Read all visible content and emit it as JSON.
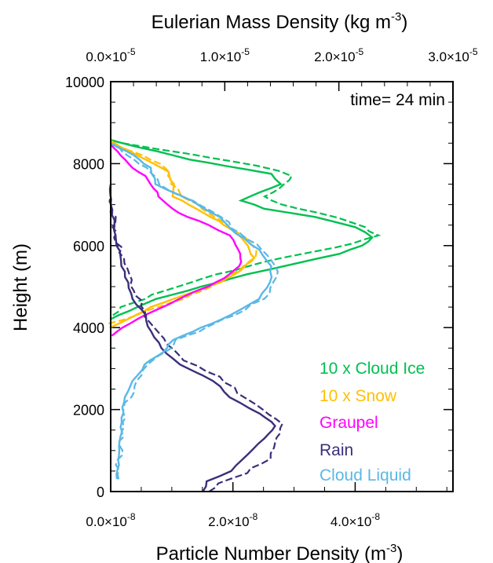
{
  "chart_data": {
    "type": "line",
    "title": "",
    "top_axis": {
      "label": "Eulerian Mass Density (kg m",
      "label_exp": "-3",
      "label_end": ")",
      "range": [
        0,
        3e-05
      ],
      "ticks": [
        {
          "value": 0.0,
          "mant": "0.0",
          "exp": "-5"
        },
        {
          "value": 1e-05,
          "mant": "1.0",
          "exp": "-5"
        },
        {
          "value": 2e-05,
          "mant": "2.0",
          "exp": "-5"
        },
        {
          "value": 3e-05,
          "mant": "3.0",
          "exp": "-5"
        }
      ]
    },
    "bottom_axis": {
      "label": "Particle Number Density (m",
      "label_exp": "-3",
      "label_end": ")",
      "range": [
        0,
        5.6e-08
      ],
      "ticks": [
        {
          "value": 0.0,
          "mant": "0.0",
          "exp": "-8"
        },
        {
          "value": 2e-08,
          "mant": "2.0",
          "exp": "-8"
        },
        {
          "value": 4e-08,
          "mant": "4.0",
          "exp": "-8"
        }
      ]
    },
    "y_axis": {
      "label": "Height (m)",
      "range": [
        0,
        10000
      ],
      "ticks": [
        0,
        2000,
        4000,
        6000,
        8000,
        10000
      ]
    },
    "annotation": "time= 24 min",
    "legend_position": "bottom-right",
    "notes": "Solid lines: Eulerian mass density (top axis). Dashed lines: particle number density (bottom axis).",
    "series": [
      {
        "name": "10 x Cloud Ice",
        "color": "#00c050",
        "mass_top": [
          [
            0,
            4200
          ],
          [
            1.5e-06,
            4400
          ],
          [
            4e-06,
            4700
          ],
          [
            8e-06,
            5000
          ],
          [
            1.2e-05,
            5300
          ],
          [
            1.6e-05,
            5550
          ],
          [
            2e-05,
            5800
          ],
          [
            2.2e-05,
            6000
          ],
          [
            2.3e-05,
            6200
          ],
          [
            2.15e-05,
            6450
          ],
          [
            1.8e-05,
            6700
          ],
          [
            1.35e-05,
            6900
          ],
          [
            1.15e-05,
            7100
          ],
          [
            1.3e-05,
            7300
          ],
          [
            1.5e-05,
            7500
          ],
          [
            1.4e-05,
            7750
          ],
          [
            1e-05,
            7950
          ],
          [
            7e-06,
            8100
          ],
          [
            4e-06,
            8300
          ],
          [
            1e-06,
            8500
          ],
          [
            0,
            8580
          ]
        ],
        "number_bottom": [
          [
            0,
            4300
          ],
          [
            2e-09,
            4500
          ],
          [
            7e-09,
            4800
          ],
          [
            1.3e-08,
            5100
          ],
          [
            2e-08,
            5400
          ],
          [
            2.8e-08,
            5700
          ],
          [
            3.7e-08,
            5950
          ],
          [
            4.4e-08,
            6250
          ],
          [
            4e-08,
            6550
          ],
          [
            3.4e-08,
            6800
          ],
          [
            2.8e-08,
            7000
          ],
          [
            2.5e-08,
            7200
          ],
          [
            2.8e-08,
            7400
          ],
          [
            3e-08,
            7700
          ],
          [
            2.4e-08,
            7950
          ],
          [
            1.6e-08,
            8150
          ],
          [
            8e-09,
            8350
          ],
          [
            2e-09,
            8500
          ],
          [
            0,
            8580
          ]
        ]
      },
      {
        "name": "10 x Snow",
        "color": "#ffc000",
        "mass_top": [
          [
            0,
            4000
          ],
          [
            1.5e-06,
            4200
          ],
          [
            3.5e-06,
            4500
          ],
          [
            6.5e-06,
            4800
          ],
          [
            9.5e-06,
            5100
          ],
          [
            1.15e-05,
            5400
          ],
          [
            1.25e-05,
            5700
          ],
          [
            1.2e-05,
            6000
          ],
          [
            1.1e-05,
            6300
          ],
          [
            9.5e-06,
            6600
          ],
          [
            7.5e-06,
            6900
          ],
          [
            5.5e-06,
            7200
          ],
          [
            5.5e-06,
            7500
          ],
          [
            5e-06,
            7800
          ],
          [
            3e-06,
            8100
          ],
          [
            1e-06,
            8400
          ],
          [
            0,
            8560
          ]
        ],
        "number_bottom": [
          [
            0,
            4100
          ],
          [
            4e-09,
            4300
          ],
          [
            1e-08,
            4600
          ],
          [
            1.5e-08,
            4900
          ],
          [
            1.9e-08,
            5200
          ],
          [
            2.2e-08,
            5500
          ],
          [
            2.4e-08,
            5800
          ],
          [
            2.3e-08,
            6100
          ],
          [
            2e-08,
            6400
          ],
          [
            1.7e-08,
            6700
          ],
          [
            1.4e-08,
            7000
          ],
          [
            1.1e-08,
            7300
          ],
          [
            1e-08,
            7600
          ],
          [
            9e-09,
            7900
          ],
          [
            5e-09,
            8200
          ],
          [
            1e-09,
            8450
          ],
          [
            0,
            8560
          ]
        ]
      },
      {
        "name": "Graupel",
        "color": "#ff00ff",
        "mass_top": [
          [
            0,
            3800
          ],
          [
            1e-06,
            4000
          ],
          [
            3e-06,
            4300
          ],
          [
            6e-06,
            4700
          ],
          [
            8.5e-06,
            5000
          ],
          [
            1.05e-05,
            5300
          ],
          [
            1.15e-05,
            5600
          ],
          [
            1.12e-05,
            5900
          ],
          [
            1.05e-05,
            6250
          ],
          [
            8.5e-06,
            6500
          ],
          [
            6e-06,
            6800
          ],
          [
            4.5e-06,
            7100
          ],
          [
            3.8e-06,
            7400
          ],
          [
            3e-06,
            7700
          ],
          [
            1.5e-06,
            8000
          ],
          [
            5e-07,
            8300
          ],
          [
            0,
            8500
          ]
        ]
      },
      {
        "name": "Rain",
        "color": "#3a2f7a",
        "mass_top": [
          [
            8e-06,
            0
          ],
          [
            8.5e-06,
            250
          ],
          [
            1.05e-05,
            500
          ],
          [
            1.2e-05,
            900
          ],
          [
            1.35e-05,
            1300
          ],
          [
            1.45e-05,
            1600
          ],
          [
            1.3e-05,
            1900
          ],
          [
            1.05e-05,
            2300
          ],
          [
            9e-06,
            2700
          ],
          [
            6e-06,
            3100
          ],
          [
            4.5e-06,
            3500
          ],
          [
            3.5e-06,
            3900
          ],
          [
            3e-06,
            4300
          ],
          [
            2e-06,
            4700
          ],
          [
            1.5e-06,
            5100
          ],
          [
            1e-06,
            5500
          ],
          [
            6e-07,
            6000
          ],
          [
            3e-07,
            6500
          ],
          [
            1e-07,
            7000
          ],
          [
            0,
            7500
          ]
        ],
        "number_bottom": [
          [
            1.6e-08,
            0
          ],
          [
            1.8e-08,
            200
          ],
          [
            2.2e-08,
            450
          ],
          [
            2.6e-08,
            800
          ],
          [
            2.7e-08,
            1200
          ],
          [
            2.8e-08,
            1650
          ],
          [
            2.5e-08,
            2000
          ],
          [
            2.1e-08,
            2400
          ],
          [
            1.8e-08,
            2800
          ],
          [
            1.2e-08,
            3200
          ],
          [
            9e-09,
            3600
          ],
          [
            7e-09,
            4000
          ],
          [
            5.5e-09,
            4400
          ],
          [
            4e-09,
            4900
          ],
          [
            3e-09,
            5300
          ],
          [
            2e-09,
            5700
          ],
          [
            1e-09,
            6200
          ],
          [
            5e-10,
            6700
          ],
          [
            0,
            7200
          ]
        ]
      },
      {
        "name": "Cloud Liquid",
        "color": "#5ab8e6",
        "mass_top": [
          [
            5e-07,
            300
          ],
          [
            8e-07,
            1000
          ],
          [
            1e-06,
            1800
          ],
          [
            1.2e-06,
            2300
          ],
          [
            2e-06,
            2700
          ],
          [
            3e-06,
            3100
          ],
          [
            4.5e-06,
            3400
          ],
          [
            5.5e-06,
            3700
          ],
          [
            8e-06,
            4000
          ],
          [
            1.05e-05,
            4300
          ],
          [
            1.3e-05,
            4700
          ],
          [
            1.4e-05,
            5100
          ],
          [
            1.4e-05,
            5500
          ],
          [
            1.3e-05,
            5900
          ],
          [
            1.1e-05,
            6300
          ],
          [
            9.5e-06,
            6700
          ],
          [
            7e-06,
            7100
          ],
          [
            4e-06,
            7500
          ],
          [
            3.5e-06,
            7900
          ],
          [
            2e-06,
            8200
          ],
          [
            0,
            8500
          ]
        ],
        "number_bottom": [
          [
            1e-09,
            300
          ],
          [
            1.5e-09,
            1000
          ],
          [
            2e-09,
            1800
          ],
          [
            3e-09,
            2300
          ],
          [
            4.5e-09,
            2700
          ],
          [
            6e-09,
            3100
          ],
          [
            9e-09,
            3400
          ],
          [
            1.1e-08,
            3700
          ],
          [
            1.6e-08,
            4000
          ],
          [
            2e-08,
            4300
          ],
          [
            2.5e-08,
            4700
          ],
          [
            2.7e-08,
            5100
          ],
          [
            2.7e-08,
            5500
          ],
          [
            2.5e-08,
            5900
          ],
          [
            2.1e-08,
            6300
          ],
          [
            1.8e-08,
            6700
          ],
          [
            1.3e-08,
            7100
          ],
          [
            8e-09,
            7500
          ],
          [
            6e-09,
            7900
          ],
          [
            3e-09,
            8200
          ],
          [
            0,
            8500
          ]
        ]
      }
    ]
  }
}
